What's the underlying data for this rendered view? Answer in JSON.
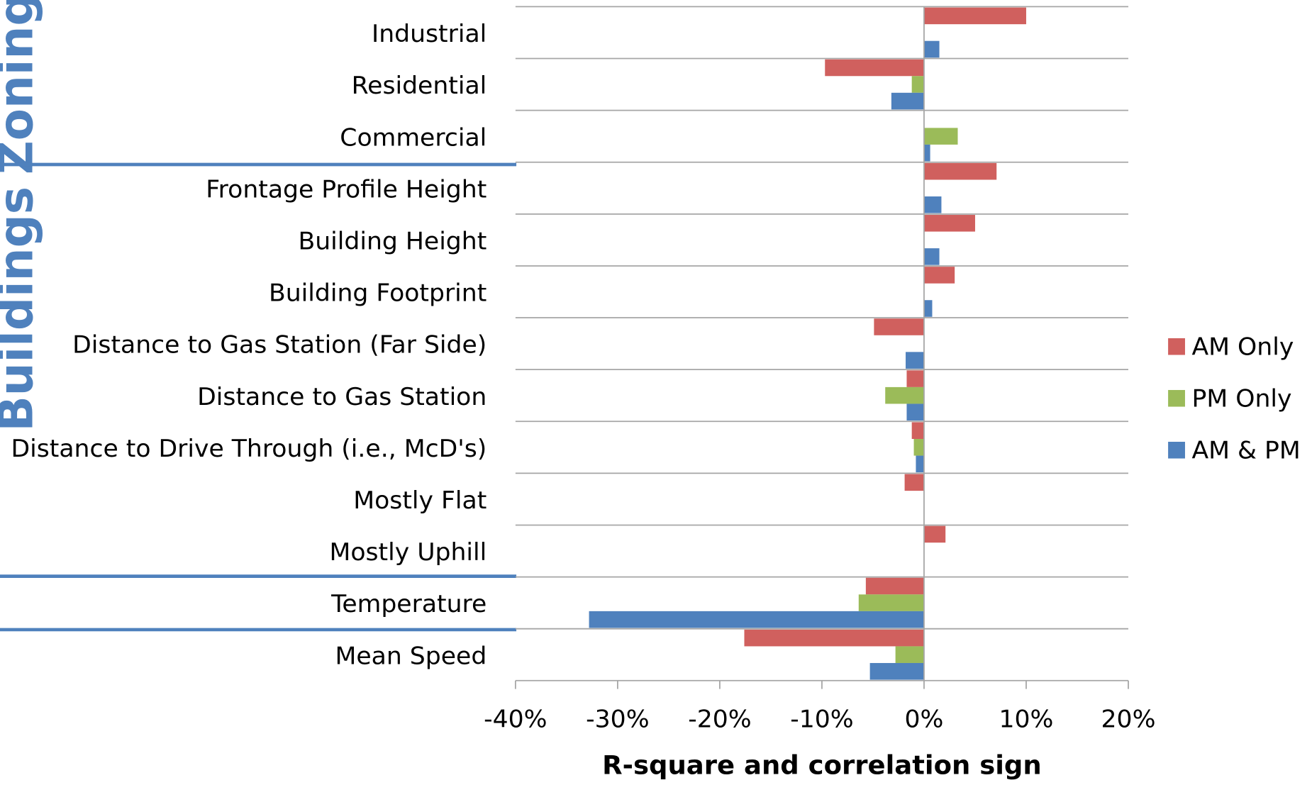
{
  "chart_data": {
    "type": "bar",
    "orientation": "horizontal",
    "x_label": "R-square and correlation sign",
    "groups": [
      "Zoning",
      "Buildings"
    ],
    "categories": [
      "Industrial",
      "Residential",
      "Commercial",
      "Frontage Profile Height",
      "Building Height",
      "Building Footprint",
      "Distance to Gas Station (Far Side)",
      "Distance to Gas Station",
      "Distance to Drive Through (i.e., McD's)",
      "Mostly Flat",
      "Mostly Uphill",
      "Temperature",
      "Mean Speed"
    ],
    "series": [
      {
        "name": "AM Only",
        "color": "#d0605e",
        "values": [
          10,
          -9.7,
          null,
          7.1,
          5.0,
          3.0,
          -4.9,
          -1.7,
          -1.2,
          -1.9,
          2.1,
          -5.7,
          -17.6
        ]
      },
      {
        "name": "PM Only",
        "color": "#9bbb59",
        "values": [
          null,
          -1.2,
          3.3,
          null,
          null,
          null,
          null,
          -3.8,
          -1.0,
          null,
          null,
          -6.4,
          -2.8
        ]
      },
      {
        "name": "AM & PM",
        "color": "#4f81bd",
        "values": [
          1.5,
          -3.2,
          0.6,
          1.7,
          1.5,
          0.8,
          -1.8,
          -1.7,
          -0.8,
          null,
          null,
          -32.8,
          -5.3
        ]
      }
    ],
    "xlim": [
      -40,
      20
    ],
    "xticks": [
      {
        "value": -40,
        "label": "-40%"
      },
      {
        "value": -30,
        "label": "-30%"
      },
      {
        "value": -20,
        "label": "-20%"
      },
      {
        "value": -10,
        "label": "-10%"
      },
      {
        "value": 0,
        "label": "0%"
      },
      {
        "value": 10,
        "label": "10%"
      },
      {
        "value": 20,
        "label": "20%"
      }
    ],
    "grid": true,
    "legend": "right"
  }
}
